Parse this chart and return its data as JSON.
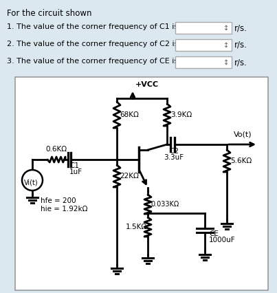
{
  "bg_color": "#dce8f0",
  "circuit_bg": "#ffffff",
  "black": "#000000",
  "gray": "#aaaaaa",
  "title_text": "For the circuit shown",
  "questions": [
    "1. The value of the corner frequency of C1 is",
    "2. The value of the corner frequency of C2 is",
    "3. The value of the corner frequency of CE is"
  ],
  "unit": "r/s.",
  "R1_label": "0.6KΩ",
  "C1_label1": "C1",
  "C1_label2": "1uF",
  "R68_label": "68KΩ",
  "R22_label": "22KΩ",
  "R39_label": "3.9KΩ",
  "C2_label1": "C2",
  "C2_label2": "3.3uF",
  "R56_label": "5.6KΩ",
  "R033_label": "0.033KΩ",
  "R15_label": "1.5KΩ",
  "CE_label1": "CE",
  "CE_label2": "1000uF",
  "hfe_label": "hfe = 200",
  "hie_label": "hie = 1.92kΩ",
  "vcc_label": "+VCC",
  "vi_label": "Vi(t)",
  "vo_label": "Vo(t)"
}
